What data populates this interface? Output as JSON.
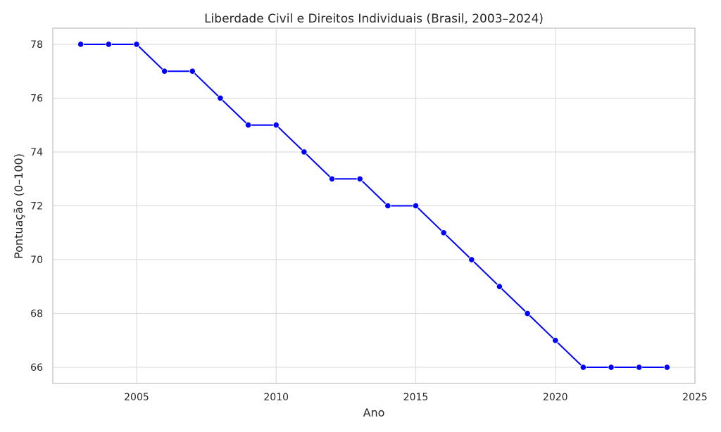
{
  "chart_data": {
    "type": "line",
    "title": "Liberdade Civil e Direitos Individuais (Brasil, 2003–2024)",
    "xlabel": "Ano",
    "ylabel": "Pontuação (0–100)",
    "xlim": [
      2002,
      2025
    ],
    "ylim": [
      65.4,
      78.6
    ],
    "x_ticks": [
      2005,
      2010,
      2015,
      2020,
      2025
    ],
    "y_ticks": [
      66,
      68,
      70,
      72,
      74,
      76,
      78
    ],
    "grid": true,
    "line_color": "#0000ff",
    "x": [
      2003,
      2004,
      2005,
      2006,
      2007,
      2008,
      2009,
      2010,
      2011,
      2012,
      2013,
      2014,
      2015,
      2016,
      2017,
      2018,
      2019,
      2020,
      2021,
      2022,
      2023,
      2024
    ],
    "y": [
      78,
      78,
      78,
      77,
      77,
      76,
      75,
      75,
      74,
      73,
      73,
      72,
      72,
      71,
      70,
      69,
      68,
      67,
      66,
      66,
      66,
      66
    ]
  }
}
